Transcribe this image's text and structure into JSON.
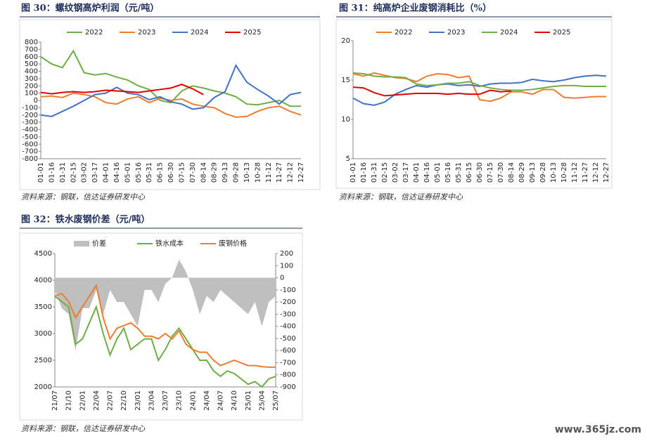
{
  "watermark": "www.365jz.com",
  "chart_data": [
    {
      "type": "line",
      "title": "图 30：螺纹钢高炉利润（元/吨）",
      "source": "资料来源：钢联，信达证券研发中心",
      "categories": [
        "01-01",
        "01-16",
        "01-31",
        "02-15",
        "03-02",
        "03-17",
        "04-01",
        "04-16",
        "05-01",
        "05-16",
        "05-31",
        "06-15",
        "06-30",
        "07-15",
        "07-30",
        "08-14",
        "08-29",
        "09-13",
        "09-28",
        "10-13",
        "10-28",
        "11-12",
        "11-27",
        "12-12",
        "12-27"
      ],
      "ylim": [
        -800,
        800
      ],
      "yticks": [
        800,
        700,
        600,
        500,
        400,
        300,
        200,
        100,
        0,
        -100,
        -200,
        -300,
        -400,
        -500,
        -600,
        -700,
        -800
      ],
      "series": [
        {
          "name": "2022",
          "color": "#70ad47",
          "values": [
            600,
            500,
            450,
            680,
            380,
            350,
            370,
            320,
            280,
            200,
            150,
            0,
            -30,
            130,
            200,
            170,
            130,
            100,
            50,
            -50,
            -60,
            -30,
            0,
            -80,
            -80
          ]
        },
        {
          "name": "2023",
          "color": "#ed7d31",
          "values": [
            50,
            60,
            40,
            100,
            80,
            50,
            -30,
            -50,
            20,
            50,
            -30,
            30,
            0,
            20,
            -50,
            -80,
            -100,
            -180,
            -230,
            -220,
            -150,
            -100,
            -80,
            -150,
            -200
          ]
        },
        {
          "name": "2024",
          "color": "#4472c4",
          "values": [
            -200,
            -220,
            -150,
            -80,
            0,
            80,
            100,
            180,
            100,
            80,
            10,
            50,
            -20,
            -50,
            -120,
            -100,
            40,
            120,
            480,
            250,
            150,
            60,
            -50,
            80,
            110
          ]
        },
        {
          "name": "2025",
          "color": "#e00000",
          "values": [
            110,
            90,
            110,
            120,
            110,
            120,
            140,
            130,
            120,
            110,
            130,
            150,
            170,
            220,
            160,
            80,
            null,
            null,
            null,
            null,
            null,
            null,
            null,
            null,
            null
          ]
        }
      ]
    },
    {
      "type": "line",
      "title": "图 31：纯高炉企业废钢消耗比（%）",
      "source": "资料来源：钢联，信达证券研发中心",
      "categories": [
        "01-01",
        "01-16",
        "01-31",
        "02-15",
        "03-02",
        "03-17",
        "04-01",
        "04-16",
        "05-01",
        "05-16",
        "05-31",
        "06-15",
        "06-30",
        "07-15",
        "07-30",
        "08-14",
        "08-29",
        "09-13",
        "09-28",
        "10-13",
        "10-28",
        "11-12",
        "11-27",
        "12-12",
        "12-27"
      ],
      "ylim": [
        5,
        20
      ],
      "yticks": [
        20,
        15,
        10,
        5
      ],
      "series": [
        {
          "name": "2022",
          "color": "#ed7d31",
          "values": [
            15.8,
            15.5,
            15.9,
            15.6,
            15.3,
            15.2,
            14.8,
            15.5,
            15.8,
            15.7,
            15.3,
            15.5,
            12.5,
            12.3,
            12.7,
            13.5,
            13.5,
            13.2,
            13.8,
            13.8,
            12.8,
            12.7,
            12.8,
            12.9,
            12.9
          ]
        },
        {
          "name": "2023",
          "color": "#4472c4",
          "values": [
            12.7,
            12.0,
            11.8,
            12.2,
            13.2,
            13.8,
            14.3,
            14.1,
            14.4,
            14.5,
            14.3,
            14.4,
            14.2,
            14.5,
            14.6,
            14.6,
            14.7,
            15.1,
            14.9,
            14.8,
            15.0,
            15.3,
            15.5,
            15.6,
            15.5
          ]
        },
        {
          "name": "2024",
          "color": "#70ad47",
          "values": [
            15.9,
            15.8,
            15.5,
            15.4,
            15.4,
            15.3,
            14.5,
            14.3,
            14.4,
            14.6,
            14.6,
            14.8,
            14.3,
            14.0,
            13.8,
            13.7,
            13.7,
            13.8,
            14.0,
            14.2,
            14.3,
            14.3,
            14.2,
            14.2,
            14.2
          ]
        },
        {
          "name": "2025",
          "color": "#e00000",
          "values": [
            14.1,
            14.0,
            13.4,
            13.0,
            13.1,
            13.2,
            13.3,
            13.3,
            13.3,
            13.2,
            13.3,
            13.2,
            13.2,
            13.7,
            13.5,
            13.6,
            null,
            null,
            null,
            null,
            null,
            null,
            null,
            null,
            null
          ]
        }
      ]
    },
    {
      "type": "line",
      "title": "图 32：铁水废钢价差（元/吨）",
      "source": "资料来源：钢联，信达证券研发中心",
      "categories": [
        "21/07",
        null,
        "21/10",
        null,
        "22/01",
        null,
        "22/04",
        null,
        "22/07",
        null,
        "22/10",
        null,
        "23/01",
        null,
        "23/04",
        null,
        "23/07",
        null,
        "23/10",
        null,
        "24/01",
        null,
        "24/04",
        null,
        "24/07",
        null,
        "24/10",
        null,
        "25/01",
        null,
        "25/04",
        null,
        "25/07"
      ],
      "ylim": [
        2000,
        4500
      ],
      "yticks": [
        4500,
        4000,
        3500,
        3000,
        2500,
        2000
      ],
      "y2lim": [
        -900,
        200
      ],
      "y2ticks": [
        200,
        100,
        0,
        -100,
        -200,
        -300,
        -400,
        -500,
        -600,
        -700,
        -800,
        -900
      ],
      "series": [
        {
          "name": "价差",
          "color": "#bfbfbf",
          "type": "area",
          "axis": "y2",
          "values": [
            -100,
            -250,
            -300,
            -600,
            -250,
            -250,
            -100,
            -300,
            -100,
            -200,
            -200,
            -300,
            -400,
            -100,
            -100,
            -200,
            -50,
            0,
            150,
            50,
            -100,
            -300,
            -150,
            -200,
            -100,
            -150,
            -200,
            -250,
            -300,
            -200,
            -400,
            -200,
            -150
          ]
        },
        {
          "name": "铁水成本",
          "color": "#70ad47",
          "values": [
            3700,
            3600,
            3500,
            2800,
            2900,
            3200,
            3500,
            3000,
            2600,
            2900,
            3100,
            2700,
            2800,
            2900,
            2900,
            2500,
            2700,
            2950,
            3100,
            2900,
            2700,
            2500,
            2500,
            2300,
            2200,
            2300,
            2250,
            2150,
            2050,
            2100,
            2000,
            2150,
            2200
          ]
        },
        {
          "name": "废钢价格",
          "color": "#ed7d31",
          "values": [
            3700,
            3750,
            3600,
            3300,
            3500,
            3700,
            3900,
            3300,
            2900,
            3100,
            3150,
            3200,
            3100,
            2950,
            2950,
            2900,
            3000,
            2900,
            3050,
            2800,
            2700,
            2650,
            2650,
            2500,
            2400,
            2450,
            2500,
            2450,
            2400,
            2400,
            2380,
            2370,
            2370
          ]
        }
      ]
    }
  ]
}
